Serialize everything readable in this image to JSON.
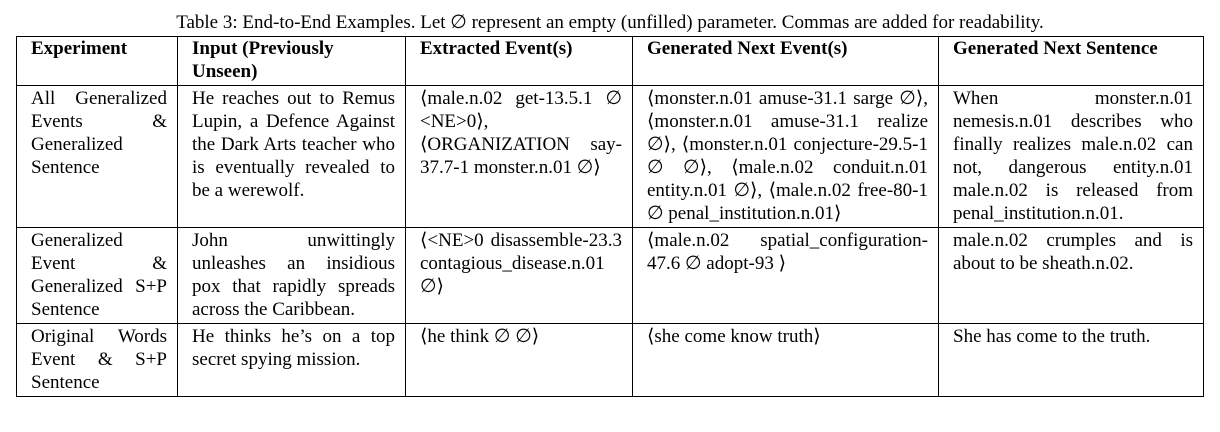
{
  "caption": "Table 3: End-to-End Examples. Let ∅ represent an empty (unfilled) parameter. Commas are added for readability.",
  "headers": [
    "Experiment",
    "Input (Previously Unseen)",
    "Extracted Event(s)",
    "Generated Next Event(s)",
    "Generated Next Sentence"
  ],
  "rows": [
    {
      "experiment": "All Generalized Events & Generalized Sentence",
      "input": "He reaches out to Remus Lupin, a Defence Against the Dark Arts teacher who is eventually revealed to be a werewolf.",
      "extracted": "⟨male.n.02 get-13.5.1 ∅ <NE>0⟩, ⟨ORGANIZATION say-37.7-1 monster.n.01 ∅⟩",
      "generated_events": "⟨monster.n.01 amuse-31.1 sarge ∅⟩, ⟨monster.n.01 amuse-31.1 realize ∅⟩, ⟨monster.n.01 conjecture-29.5-1 ∅ ∅⟩, ⟨male.n.02 conduit.n.01 entity.n.01 ∅⟩, ⟨male.n.02 free-80-1 ∅ penal_institution.n.01⟩",
      "generated_sentence": "When monster.n.01 nemesis.n.01 describes who finally realizes male.n.02 can not, dangerous entity.n.01 male.n.02 is released from penal_institution.n.01."
    },
    {
      "experiment": "Generalized Event & Generalized S+P Sentence",
      "input": "John unwittingly unleashes an insidious pox that rapidly spreads across the Caribbean.",
      "extracted": "⟨<NE>0 disassemble-23.3 contagious_disease.n.01 ∅⟩",
      "generated_events": "⟨male.n.02 spatial_configuration-47.6 ∅ adopt-93 ⟩",
      "generated_sentence": "male.n.02 crumples and is about to be sheath.n.02."
    },
    {
      "experiment": "Original Words Event & S+P Sentence",
      "input": "He thinks he’s on a top secret spying mission.",
      "extracted": "⟨he think ∅ ∅⟩",
      "generated_events": "⟨she come know truth⟩",
      "generated_sentence": "She has come to the truth."
    }
  ]
}
